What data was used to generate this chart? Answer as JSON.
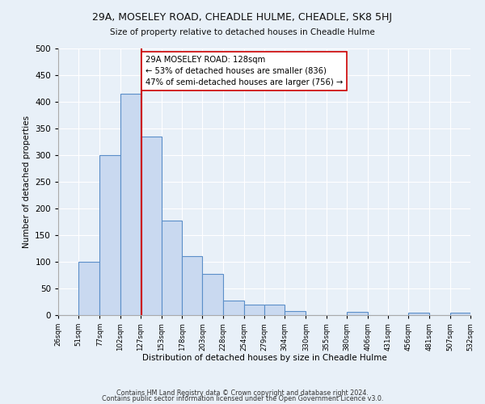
{
  "title": "29A, MOSELEY ROAD, CHEADLE HULME, CHEADLE, SK8 5HJ",
  "subtitle": "Size of property relative to detached houses in Cheadle Hulme",
  "xlabel": "Distribution of detached houses by size in Cheadle Hulme",
  "ylabel": "Number of detached properties",
  "bar_edges": [
    26,
    51,
    77,
    102,
    127,
    153,
    178,
    203,
    228,
    254,
    279,
    304,
    330,
    355,
    380,
    406,
    431,
    456,
    481,
    507,
    532
  ],
  "bar_heights": [
    0,
    100,
    300,
    415,
    335,
    178,
    110,
    78,
    28,
    20,
    20,
    8,
    0,
    0,
    6,
    0,
    0,
    5,
    0,
    5
  ],
  "bar_color": "#c9d9f0",
  "bar_edge_color": "#5b8fc9",
  "property_value": 128,
  "property_line_color": "#cc0000",
  "annotation_line1": "29A MOSELEY ROAD: 128sqm",
  "annotation_line2": "← 53% of detached houses are smaller (836)",
  "annotation_line3": "47% of semi-detached houses are larger (756) →",
  "annotation_box_color": "#ffffff",
  "annotation_box_edge_color": "#cc0000",
  "ylim": [
    0,
    500
  ],
  "yticks": [
    0,
    50,
    100,
    150,
    200,
    250,
    300,
    350,
    400,
    450,
    500
  ],
  "footnote1": "Contains HM Land Registry data © Crown copyright and database right 2024.",
  "footnote2": "Contains public sector information licensed under the Open Government Licence v3.0.",
  "bg_color": "#e8f0f8",
  "plot_bg_color": "#e8f0f8"
}
